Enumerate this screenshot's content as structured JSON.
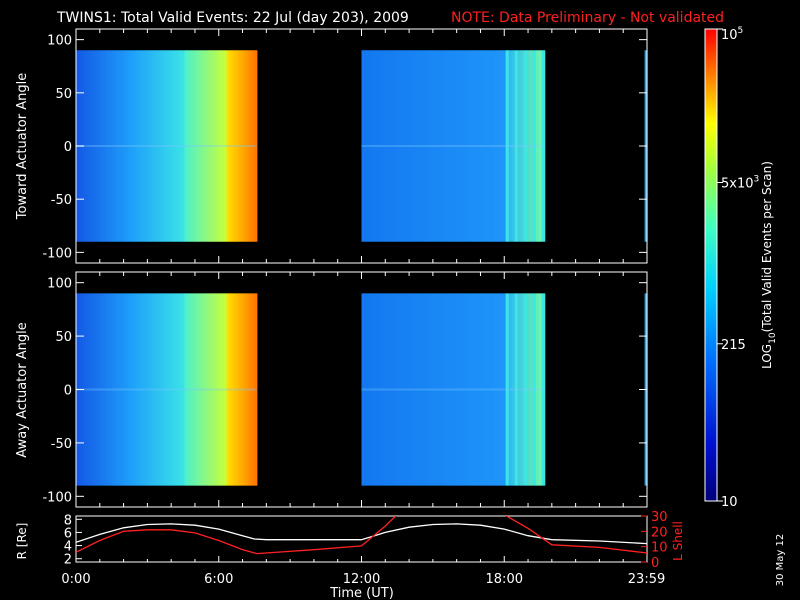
{
  "title": "TWINS1: Total Valid Events: 22 Jul (day 203), 2009",
  "note": "NOTE: Data Preliminary - Not validated",
  "date_stamp": "30 May 12",
  "colors": {
    "note": "#ff2020",
    "r_line": "#ffffff",
    "l_line": "#ff2020",
    "background": "#000000"
  },
  "chart_data": [
    {
      "type": "heatmap",
      "ylabel": "Toward Actuator Angle",
      "ylim": [
        -110,
        110
      ],
      "yticks": [
        -100,
        -50,
        0,
        50,
        100
      ],
      "xlim": [
        0,
        24
      ],
      "data_blocks": [
        {
          "x_start": 0.0,
          "x_end": 7.6,
          "y_start": -90,
          "y_end": 90,
          "level_profile": "rising from ~215 to ~5x10^3 toward block end"
        },
        {
          "x_start": 12.0,
          "x_end": 19.7,
          "y_start": -90,
          "y_end": 90,
          "level_profile": "~100-215, rising near block end"
        },
        {
          "x_start": 23.9,
          "x_end": 24.0,
          "y_start": -90,
          "y_end": 90,
          "level_profile": "~215"
        }
      ]
    },
    {
      "type": "heatmap",
      "ylabel": "Away Actuator Angle",
      "ylim": [
        -110,
        110
      ],
      "yticks": [
        -100,
        -50,
        0,
        50,
        100
      ],
      "xlim": [
        0,
        24
      ],
      "data_blocks": [
        {
          "x_start": 0.0,
          "x_end": 7.6,
          "y_start": -90,
          "y_end": 90,
          "level_profile": "rising from ~215 to ~5x10^3 toward block end"
        },
        {
          "x_start": 12.0,
          "x_end": 19.7,
          "y_start": -90,
          "y_end": 90,
          "level_profile": "~100-215, rising near block end"
        },
        {
          "x_start": 23.9,
          "x_end": 24.0,
          "y_start": -90,
          "y_end": 90,
          "level_profile": "~215"
        }
      ]
    },
    {
      "type": "line",
      "xlabel": "Time (UT)",
      "xticks": [
        "0:00",
        "6:00",
        "12:00",
        "18:00",
        "23:59"
      ],
      "xtick_values": [
        0,
        6,
        12,
        18,
        23.98
      ],
      "xlim": [
        0,
        24
      ],
      "ylabel_left": "R [Re]",
      "ylim_left": [
        1.5,
        8.5
      ],
      "yticks_left": [
        2,
        4,
        6,
        8
      ],
      "ylabel_right": "L Shell",
      "ylim_right": [
        0,
        30
      ],
      "yticks_right": [
        0,
        10,
        20,
        30
      ],
      "series": [
        {
          "axis": "left",
          "x": [
            0,
            1,
            2,
            3,
            4,
            5,
            6,
            7,
            7.5,
            8,
            10,
            12,
            13,
            14,
            15,
            16,
            17,
            18,
            19,
            20,
            22,
            24
          ],
          "values": [
            4.5,
            5.7,
            6.7,
            7.2,
            7.3,
            7.1,
            6.5,
            5.5,
            5.0,
            4.9,
            4.9,
            4.9,
            6.0,
            6.8,
            7.2,
            7.3,
            7.1,
            6.5,
            5.5,
            4.9,
            4.7,
            4.3
          ]
        },
        {
          "axis": "right",
          "x": [
            0,
            1,
            2,
            3,
            4,
            5,
            6,
            7,
            7.6,
            10,
            12,
            13,
            13.5,
            18,
            18.2,
            19,
            20,
            22,
            24
          ],
          "values": [
            6.4,
            14,
            20,
            21,
            21,
            19,
            14,
            8.1,
            5.5,
            8,
            10.5,
            23.5,
            31,
            31,
            29,
            22,
            11.2,
            9.5,
            5.9
          ]
        }
      ]
    }
  ],
  "colorbar": {
    "label": "LOG10(Total Valid Events per Scan)",
    "label_main": "LOG",
    "label_sub": "10",
    "label_rest": "(Total Valid Events per Scan)",
    "scale": "log",
    "range": [
      10,
      100000
    ],
    "ticks": [
      {
        "value": 10,
        "text": "10",
        "sup": ""
      },
      {
        "value": 215,
        "text": "215",
        "sup": ""
      },
      {
        "value": 5000,
        "text": "5x10",
        "sup": "3"
      },
      {
        "value": 100000,
        "text": "10",
        "sup": "5"
      }
    ]
  }
}
